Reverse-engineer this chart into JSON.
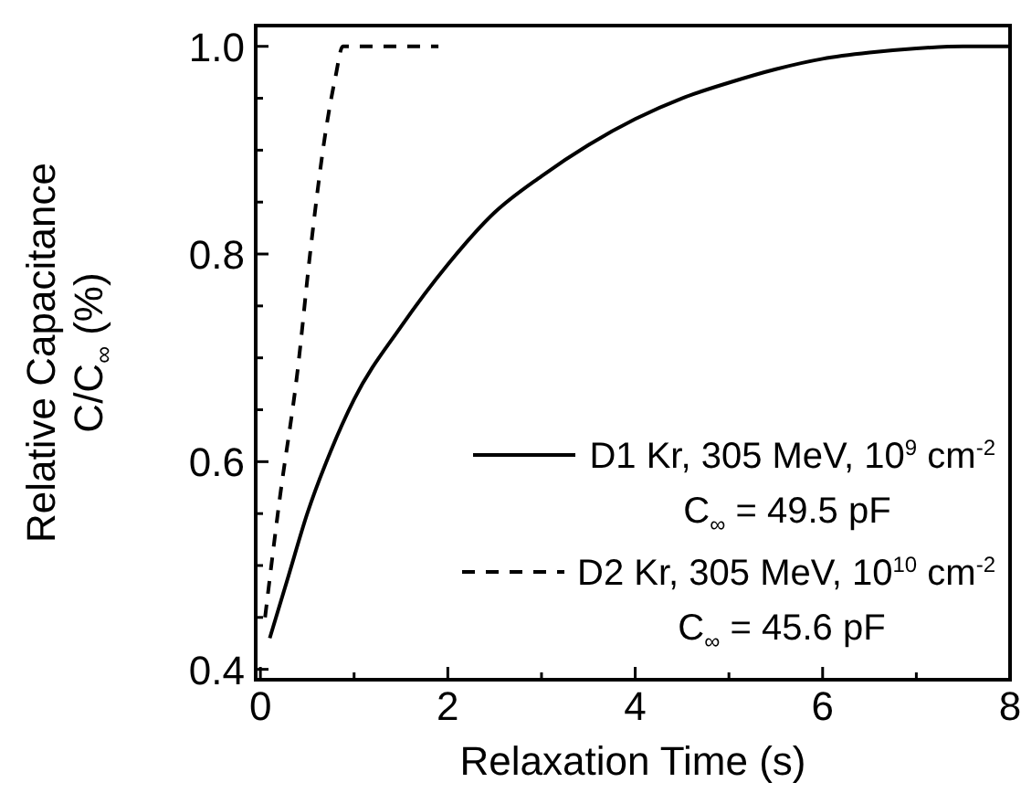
{
  "chart_data": {
    "type": "line",
    "xlabel": "Relaxation Time (s)",
    "ylabel": "Relative Capacitance\nC/C$_{∞}$ (%)",
    "xlim": [
      -0.05,
      8
    ],
    "ylim": [
      0.39,
      1.02
    ],
    "xticks": [
      0,
      {
        "value": 1,
        "label": null
      },
      2,
      {
        "value": 3,
        "label": null
      },
      4,
      {
        "value": 5,
        "label": null
      },
      6,
      {
        "value": 7,
        "label": null
      },
      8
    ],
    "yticks": [
      0.4,
      {
        "value": 0.45,
        "label": null
      },
      {
        "value": 0.5,
        "label": null
      },
      {
        "value": 0.55,
        "label": null
      },
      0.6,
      {
        "value": 0.65,
        "label": null
      },
      {
        "value": 0.7,
        "label": null
      },
      {
        "value": 0.75,
        "label": null
      },
      0.8,
      {
        "value": 0.85,
        "label": null
      },
      {
        "value": 0.9,
        "label": null
      },
      {
        "value": 0.95,
        "label": null
      },
      {
        "value": 1.0,
        "label": "1.0"
      }
    ],
    "legend": "bottom right",
    "grid": false,
    "marker": "none",
    "series": [
      {
        "name": "D1 Kr, 305 MeV, 10$^{9}$ cm$^{-2}$",
        "color": "#000000",
        "line_style": "solid",
        "x": [
          0.1,
          0.3,
          0.5,
          0.75,
          1.0,
          1.5,
          2,
          2.5,
          3,
          3.5,
          4,
          4.5,
          5,
          5.5,
          6,
          6.5,
          7,
          7.5,
          8
        ],
        "values": [
          0.43,
          0.49,
          0.55,
          0.61,
          0.66,
          0.73,
          0.79,
          0.84,
          0.875,
          0.905,
          0.93,
          0.95,
          0.965,
          0.978,
          0.988,
          0.994,
          0.998,
          1.0,
          1.0
        ]
      },
      {
        "name": "D2 Kr, 305 MeV, 10$^{10}$ cm$^{-2}$",
        "color": "#000000",
        "line_style": "dashed",
        "x": [
          0.05,
          0.2,
          0.4,
          0.53,
          0.7,
          0.8,
          0.88,
          1.9
        ],
        "values": [
          0.45,
          0.56,
          0.69,
          0.8,
          0.92,
          0.97,
          1.0,
          1.0
        ]
      }
    ],
    "annotations": [
      "C$_{∞}$ = 49.5 pF",
      "C$_{∞}$ = 45.6 pF"
    ]
  }
}
